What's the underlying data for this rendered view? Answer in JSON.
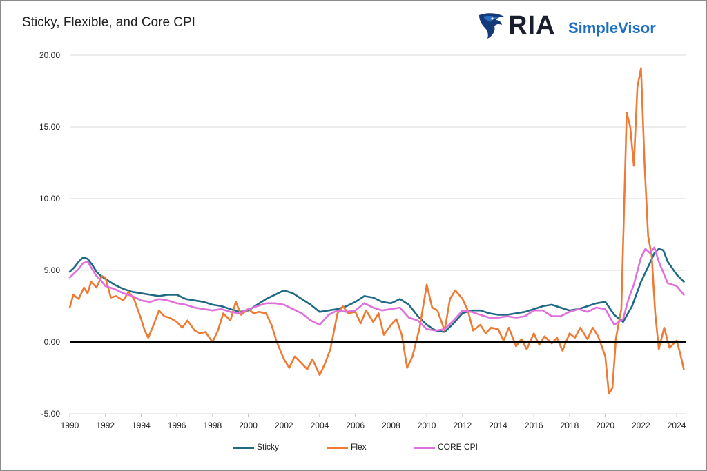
{
  "brand": {
    "logo_ria": "RIA",
    "logo_simplevisor": "SimpleVisor",
    "logo_color": "#1f6fc0"
  },
  "chart_data": {
    "type": "line",
    "title": "Sticky, Flexible, and Core CPI",
    "xlabel": "",
    "ylabel": "",
    "xlim": [
      1990,
      2024.5
    ],
    "ylim": [
      -5,
      20
    ],
    "y_ticks": [
      -5,
      0,
      5,
      10,
      15,
      20
    ],
    "y_tick_labels": [
      "-5.00",
      "0.00",
      "5.00",
      "10.00",
      "15.00",
      "20.00"
    ],
    "x_ticks": [
      1990,
      1992,
      1994,
      1996,
      1998,
      2000,
      2002,
      2004,
      2006,
      2008,
      2010,
      2012,
      2014,
      2016,
      2018,
      2020,
      2022,
      2024
    ],
    "x_tick_labels": [
      "1990",
      "1992",
      "1994",
      "1996",
      "1998",
      "2000",
      "2002",
      "2004",
      "2006",
      "2008",
      "2010",
      "2012",
      "2014",
      "2016",
      "2018",
      "2020",
      "2022",
      "2024"
    ],
    "grid": true,
    "zero_line": true,
    "legend_position": "bottom",
    "series": [
      {
        "name": "Sticky",
        "color": "#1e6a85",
        "x": [
          1990.0,
          1990.25,
          1990.5,
          1990.75,
          1991.0,
          1991.25,
          1991.5,
          1991.75,
          1992.0,
          1992.5,
          1993.0,
          1993.5,
          1994.0,
          1994.5,
          1995.0,
          1995.5,
          1996.0,
          1996.5,
          1997.0,
          1997.5,
          1998.0,
          1998.5,
          1999.0,
          1999.5,
          2000.0,
          2000.5,
          2001.0,
          2001.5,
          2002.0,
          2002.5,
          2003.0,
          2003.5,
          2004.0,
          2004.5,
          2005.0,
          2005.5,
          2006.0,
          2006.5,
          2007.0,
          2007.5,
          2008.0,
          2008.5,
          2009.0,
          2009.5,
          2010.0,
          2010.5,
          2011.0,
          2011.5,
          2012.0,
          2012.5,
          2013.0,
          2013.5,
          2014.0,
          2014.5,
          2015.0,
          2015.5,
          2016.0,
          2016.5,
          2017.0,
          2017.5,
          2018.0,
          2018.5,
          2019.0,
          2019.5,
          2020.0,
          2020.5,
          2021.0,
          2021.5,
          2022.0,
          2022.5,
          2022.75,
          2023.0,
          2023.25,
          2023.5,
          2024.0,
          2024.4
        ],
        "values": [
          4.9,
          5.2,
          5.6,
          5.9,
          5.8,
          5.4,
          4.9,
          4.6,
          4.4,
          4.0,
          3.7,
          3.5,
          3.4,
          3.3,
          3.2,
          3.3,
          3.3,
          3.0,
          2.9,
          2.8,
          2.6,
          2.5,
          2.3,
          2.1,
          2.2,
          2.6,
          3.0,
          3.3,
          3.6,
          3.4,
          3.0,
          2.6,
          2.1,
          2.2,
          2.3,
          2.5,
          2.8,
          3.2,
          3.1,
          2.8,
          2.7,
          3.0,
          2.6,
          1.8,
          1.2,
          0.8,
          0.7,
          1.3,
          2.0,
          2.2,
          2.2,
          2.0,
          1.9,
          1.9,
          2.0,
          2.1,
          2.3,
          2.5,
          2.6,
          2.4,
          2.2,
          2.3,
          2.5,
          2.7,
          2.8,
          1.9,
          1.4,
          2.5,
          4.2,
          5.5,
          6.2,
          6.5,
          6.4,
          5.6,
          4.7,
          4.2
        ]
      },
      {
        "name": "Flex",
        "color": "#ee7a34",
        "x": [
          1990.0,
          1990.2,
          1990.5,
          1990.8,
          1991.0,
          1991.2,
          1991.5,
          1991.8,
          1992.0,
          1992.3,
          1992.6,
          1993.0,
          1993.3,
          1993.6,
          1994.0,
          1994.2,
          1994.4,
          1994.7,
          1995.0,
          1995.3,
          1995.6,
          1996.0,
          1996.3,
          1996.6,
          1997.0,
          1997.3,
          1997.6,
          1998.0,
          1998.3,
          1998.6,
          1999.0,
          1999.3,
          1999.6,
          2000.0,
          2000.3,
          2000.6,
          2001.0,
          2001.3,
          2001.6,
          2002.0,
          2002.3,
          2002.6,
          2003.0,
          2003.3,
          2003.6,
          2004.0,
          2004.3,
          2004.6,
          2005.0,
          2005.3,
          2005.6,
          2006.0,
          2006.3,
          2006.6,
          2007.0,
          2007.3,
          2007.6,
          2008.0,
          2008.3,
          2008.6,
          2008.9,
          2009.2,
          2009.6,
          2010.0,
          2010.3,
          2010.6,
          2011.0,
          2011.3,
          2011.6,
          2012.0,
          2012.3,
          2012.6,
          2013.0,
          2013.3,
          2013.6,
          2014.0,
          2014.3,
          2014.6,
          2015.0,
          2015.3,
          2015.6,
          2016.0,
          2016.3,
          2016.6,
          2017.0,
          2017.3,
          2017.6,
          2018.0,
          2018.3,
          2018.6,
          2019.0,
          2019.3,
          2019.6,
          2020.0,
          2020.2,
          2020.4,
          2020.6,
          2020.9,
          2021.2,
          2021.4,
          2021.6,
          2021.8,
          2022.0,
          2022.2,
          2022.4,
          2022.6,
          2022.8,
          2023.0,
          2023.3,
          2023.6,
          2024.0,
          2024.2,
          2024.4
        ],
        "values": [
          2.4,
          3.3,
          3.0,
          3.8,
          3.4,
          4.2,
          3.8,
          4.6,
          4.5,
          3.1,
          3.2,
          2.9,
          3.5,
          3.0,
          1.6,
          0.8,
          0.3,
          1.2,
          2.2,
          1.8,
          1.7,
          1.4,
          1.0,
          1.5,
          0.8,
          0.6,
          0.7,
          0.0,
          0.8,
          2.0,
          1.5,
          2.8,
          1.9,
          2.3,
          2.0,
          2.1,
          2.0,
          1.2,
          0.0,
          -1.2,
          -1.8,
          -1.0,
          -1.5,
          -1.9,
          -1.2,
          -2.3,
          -1.5,
          -0.5,
          2.0,
          2.5,
          2.0,
          2.1,
          1.3,
          2.2,
          1.4,
          2.0,
          0.5,
          1.2,
          1.6,
          0.5,
          -1.8,
          -1.0,
          1.0,
          4.0,
          2.4,
          2.2,
          0.8,
          3.0,
          3.6,
          3.0,
          2.2,
          0.8,
          1.2,
          0.6,
          1.0,
          0.9,
          0.1,
          1.0,
          -0.3,
          0.2,
          -0.5,
          0.6,
          -0.2,
          0.4,
          -0.1,
          0.3,
          -0.6,
          0.6,
          0.3,
          1.0,
          0.2,
          1.0,
          0.4,
          -1.0,
          -3.6,
          -3.2,
          0.3,
          2.3,
          16.0,
          15.0,
          12.3,
          17.8,
          19.1,
          12.5,
          7.4,
          6.0,
          2.0,
          -0.5,
          1.0,
          -0.4,
          0.1,
          -0.8,
          -1.9
        ]
      },
      {
        "name": "CORE CPI",
        "color": "#e070dc",
        "x": [
          1990.0,
          1990.25,
          1990.5,
          1990.75,
          1991.0,
          1991.25,
          1991.5,
          1991.75,
          1992.0,
          1992.5,
          1993.0,
          1993.5,
          1994.0,
          1994.5,
          1995.0,
          1995.5,
          1996.0,
          1996.5,
          1997.0,
          1997.5,
          1998.0,
          1998.5,
          1999.0,
          1999.5,
          2000.0,
          2000.5,
          2001.0,
          2001.5,
          2002.0,
          2002.5,
          2003.0,
          2003.5,
          2004.0,
          2004.5,
          2005.0,
          2005.5,
          2006.0,
          2006.5,
          2007.0,
          2007.5,
          2008.0,
          2008.5,
          2009.0,
          2009.5,
          2010.0,
          2010.5,
          2011.0,
          2011.5,
          2012.0,
          2012.5,
          2013.0,
          2013.5,
          2014.0,
          2014.5,
          2015.0,
          2015.5,
          2016.0,
          2016.5,
          2017.0,
          2017.5,
          2018.0,
          2018.5,
          2019.0,
          2019.5,
          2020.0,
          2020.5,
          2021.0,
          2021.3,
          2021.6,
          2022.0,
          2022.25,
          2022.5,
          2022.75,
          2023.0,
          2023.5,
          2024.0,
          2024.4
        ],
        "values": [
          4.5,
          4.8,
          5.1,
          5.5,
          5.6,
          5.1,
          4.6,
          4.3,
          3.9,
          3.7,
          3.4,
          3.2,
          2.9,
          2.8,
          3.0,
          2.9,
          2.7,
          2.6,
          2.4,
          2.3,
          2.2,
          2.3,
          2.1,
          2.0,
          2.3,
          2.5,
          2.7,
          2.7,
          2.6,
          2.3,
          2.0,
          1.5,
          1.2,
          1.9,
          2.2,
          2.1,
          2.2,
          2.7,
          2.4,
          2.2,
          2.3,
          2.4,
          1.7,
          1.5,
          0.9,
          0.8,
          0.9,
          1.5,
          2.2,
          2.1,
          1.9,
          1.7,
          1.7,
          1.8,
          1.7,
          1.8,
          2.2,
          2.2,
          1.8,
          1.8,
          2.1,
          2.3,
          2.1,
          2.4,
          2.3,
          1.2,
          1.6,
          3.0,
          4.0,
          5.9,
          6.5,
          6.2,
          6.6,
          5.6,
          4.1,
          3.9,
          3.3
        ]
      }
    ]
  }
}
